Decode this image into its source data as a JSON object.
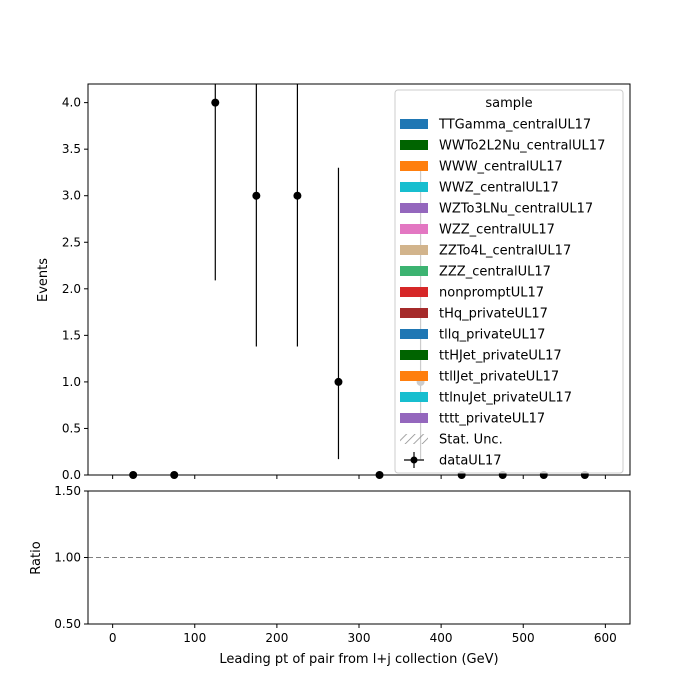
{
  "chart_data": [
    {
      "type": "scatter",
      "xlabel": "Leading pt of pair from l+j collection (GeV)",
      "ylabel": "Events",
      "xlim": [
        -30,
        630
      ],
      "ylim": [
        0,
        4.2
      ],
      "x_ticks": [
        "0",
        "100",
        "200",
        "300",
        "400",
        "500",
        "600"
      ],
      "x_tick_values": [
        0,
        100,
        200,
        300,
        400,
        500,
        600
      ],
      "y_ticks": [
        "0.0",
        "0.5",
        "1.0",
        "1.5",
        "2.0",
        "2.5",
        "3.0",
        "3.5",
        "4.0"
      ],
      "y_tick_values": [
        0,
        0.5,
        1.0,
        1.5,
        2.0,
        2.5,
        3.0,
        3.5,
        4.0
      ],
      "grid": false,
      "legend": {
        "title": "sample",
        "placement": "top-right",
        "entries": [
          {
            "label": "TTGamma_centralUL17",
            "color": "#1f77b4",
            "kind": "patch"
          },
          {
            "label": "WWTo2L2Nu_centralUL17",
            "color": "#006400",
            "kind": "patch"
          },
          {
            "label": "WWW_centralUL17",
            "color": "#ff7f0e",
            "kind": "patch"
          },
          {
            "label": "WWZ_centralUL17",
            "color": "#17becf",
            "kind": "patch"
          },
          {
            "label": "WZTo3LNu_centralUL17",
            "color": "#9467bd",
            "kind": "patch"
          },
          {
            "label": "WZZ_centralUL17",
            "color": "#e377c2",
            "kind": "patch"
          },
          {
            "label": "ZZTo4L_centralUL17",
            "color": "#d2b48c",
            "kind": "patch"
          },
          {
            "label": "ZZZ_centralUL17",
            "color": "#3cb371",
            "kind": "patch"
          },
          {
            "label": "nonpromptUL17",
            "color": "#d62728",
            "kind": "patch"
          },
          {
            "label": "tHq_privateUL17",
            "color": "#a52a2a",
            "kind": "patch"
          },
          {
            "label": "tllq_privateUL17",
            "color": "#1f77b4",
            "kind": "patch"
          },
          {
            "label": "ttHJet_privateUL17",
            "color": "#006400",
            "kind": "patch"
          },
          {
            "label": "ttllJet_privateUL17",
            "color": "#ff7f0e",
            "kind": "patch"
          },
          {
            "label": "ttlnuJet_privateUL17",
            "color": "#17becf",
            "kind": "patch"
          },
          {
            "label": "tttt_privateUL17",
            "color": "#9467bd",
            "kind": "patch"
          },
          {
            "label": "Stat. Unc.",
            "color": "#888888",
            "kind": "hatch"
          },
          {
            "label": "dataUL17",
            "color": "#000000",
            "kind": "errorbar"
          }
        ]
      },
      "series": [
        {
          "name": "dataUL17",
          "x": [
            25,
            75,
            125,
            175,
            225,
            275,
            325,
            375,
            425,
            475,
            525,
            575
          ],
          "y": [
            0,
            0,
            4,
            3,
            3,
            1,
            0,
            1,
            0,
            0,
            0,
            0
          ],
          "yerr_low": [
            0,
            0,
            1.91,
            1.62,
            1.62,
            0.83,
            0,
            0.83,
            0,
            0,
            0,
            0
          ],
          "yerr_high": [
            0,
            0,
            3.16,
            2.92,
            2.92,
            2.3,
            0,
            2.3,
            0,
            0,
            0,
            0
          ]
        }
      ]
    },
    {
      "type": "line",
      "xlabel": "Leading pt of pair from l+j collection (GeV)",
      "ylabel": "Ratio",
      "xlim": [
        -30,
        630
      ],
      "ylim": [
        0.5,
        1.5
      ],
      "x_ticks": [
        "0",
        "100",
        "200",
        "300",
        "400",
        "500",
        "600"
      ],
      "x_tick_values": [
        0,
        100,
        200,
        300,
        400,
        500,
        600
      ],
      "y_ticks": [
        "0.50",
        "1.00",
        "1.50"
      ],
      "y_tick_values": [
        0.5,
        1.0,
        1.5
      ],
      "reference_line": 1.0,
      "grid": false
    }
  ]
}
